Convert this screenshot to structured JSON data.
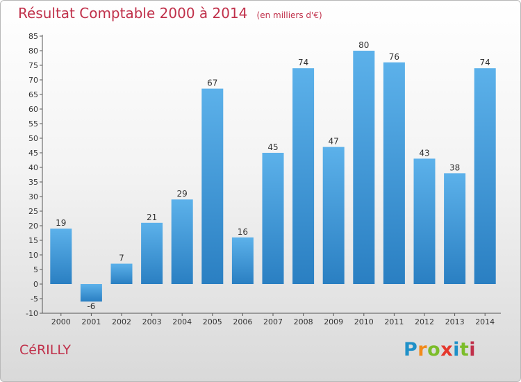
{
  "title": "Résultat Comptable 2000 à 2014",
  "unit": "(en milliers d'€)",
  "commune": "CéRILLY",
  "logo": {
    "letters": [
      "P",
      "r",
      "o",
      "x",
      "i",
      "t",
      "i"
    ],
    "colors": [
      "#1e90c8",
      "#f28a1a",
      "#7cbd2a",
      "#e5372c",
      "#1e90c8",
      "#7cbd2a",
      "#c0304a"
    ]
  },
  "colors": {
    "bar_light": "#5cb1ea",
    "bar_dark": "#2a7fc2",
    "title": "#c0304a"
  },
  "chart_data": {
    "type": "bar",
    "title": "Résultat Comptable 2000 à 2014",
    "ylabel": "(en milliers d'€)",
    "xlabel": "",
    "categories": [
      "2000",
      "2001",
      "2002",
      "2003",
      "2004",
      "2005",
      "2006",
      "2007",
      "2008",
      "2009",
      "2010",
      "2011",
      "2012",
      "2013",
      "2014"
    ],
    "values": [
      19,
      -6,
      7,
      21,
      29,
      67,
      16,
      45,
      74,
      47,
      80,
      76,
      43,
      38,
      74
    ],
    "ylim": [
      -10,
      85
    ],
    "yticks": [
      -10,
      -5,
      0,
      5,
      10,
      15,
      20,
      25,
      30,
      35,
      40,
      45,
      50,
      55,
      60,
      65,
      70,
      75,
      80,
      85
    ],
    "grid": false,
    "data_labels": true
  }
}
